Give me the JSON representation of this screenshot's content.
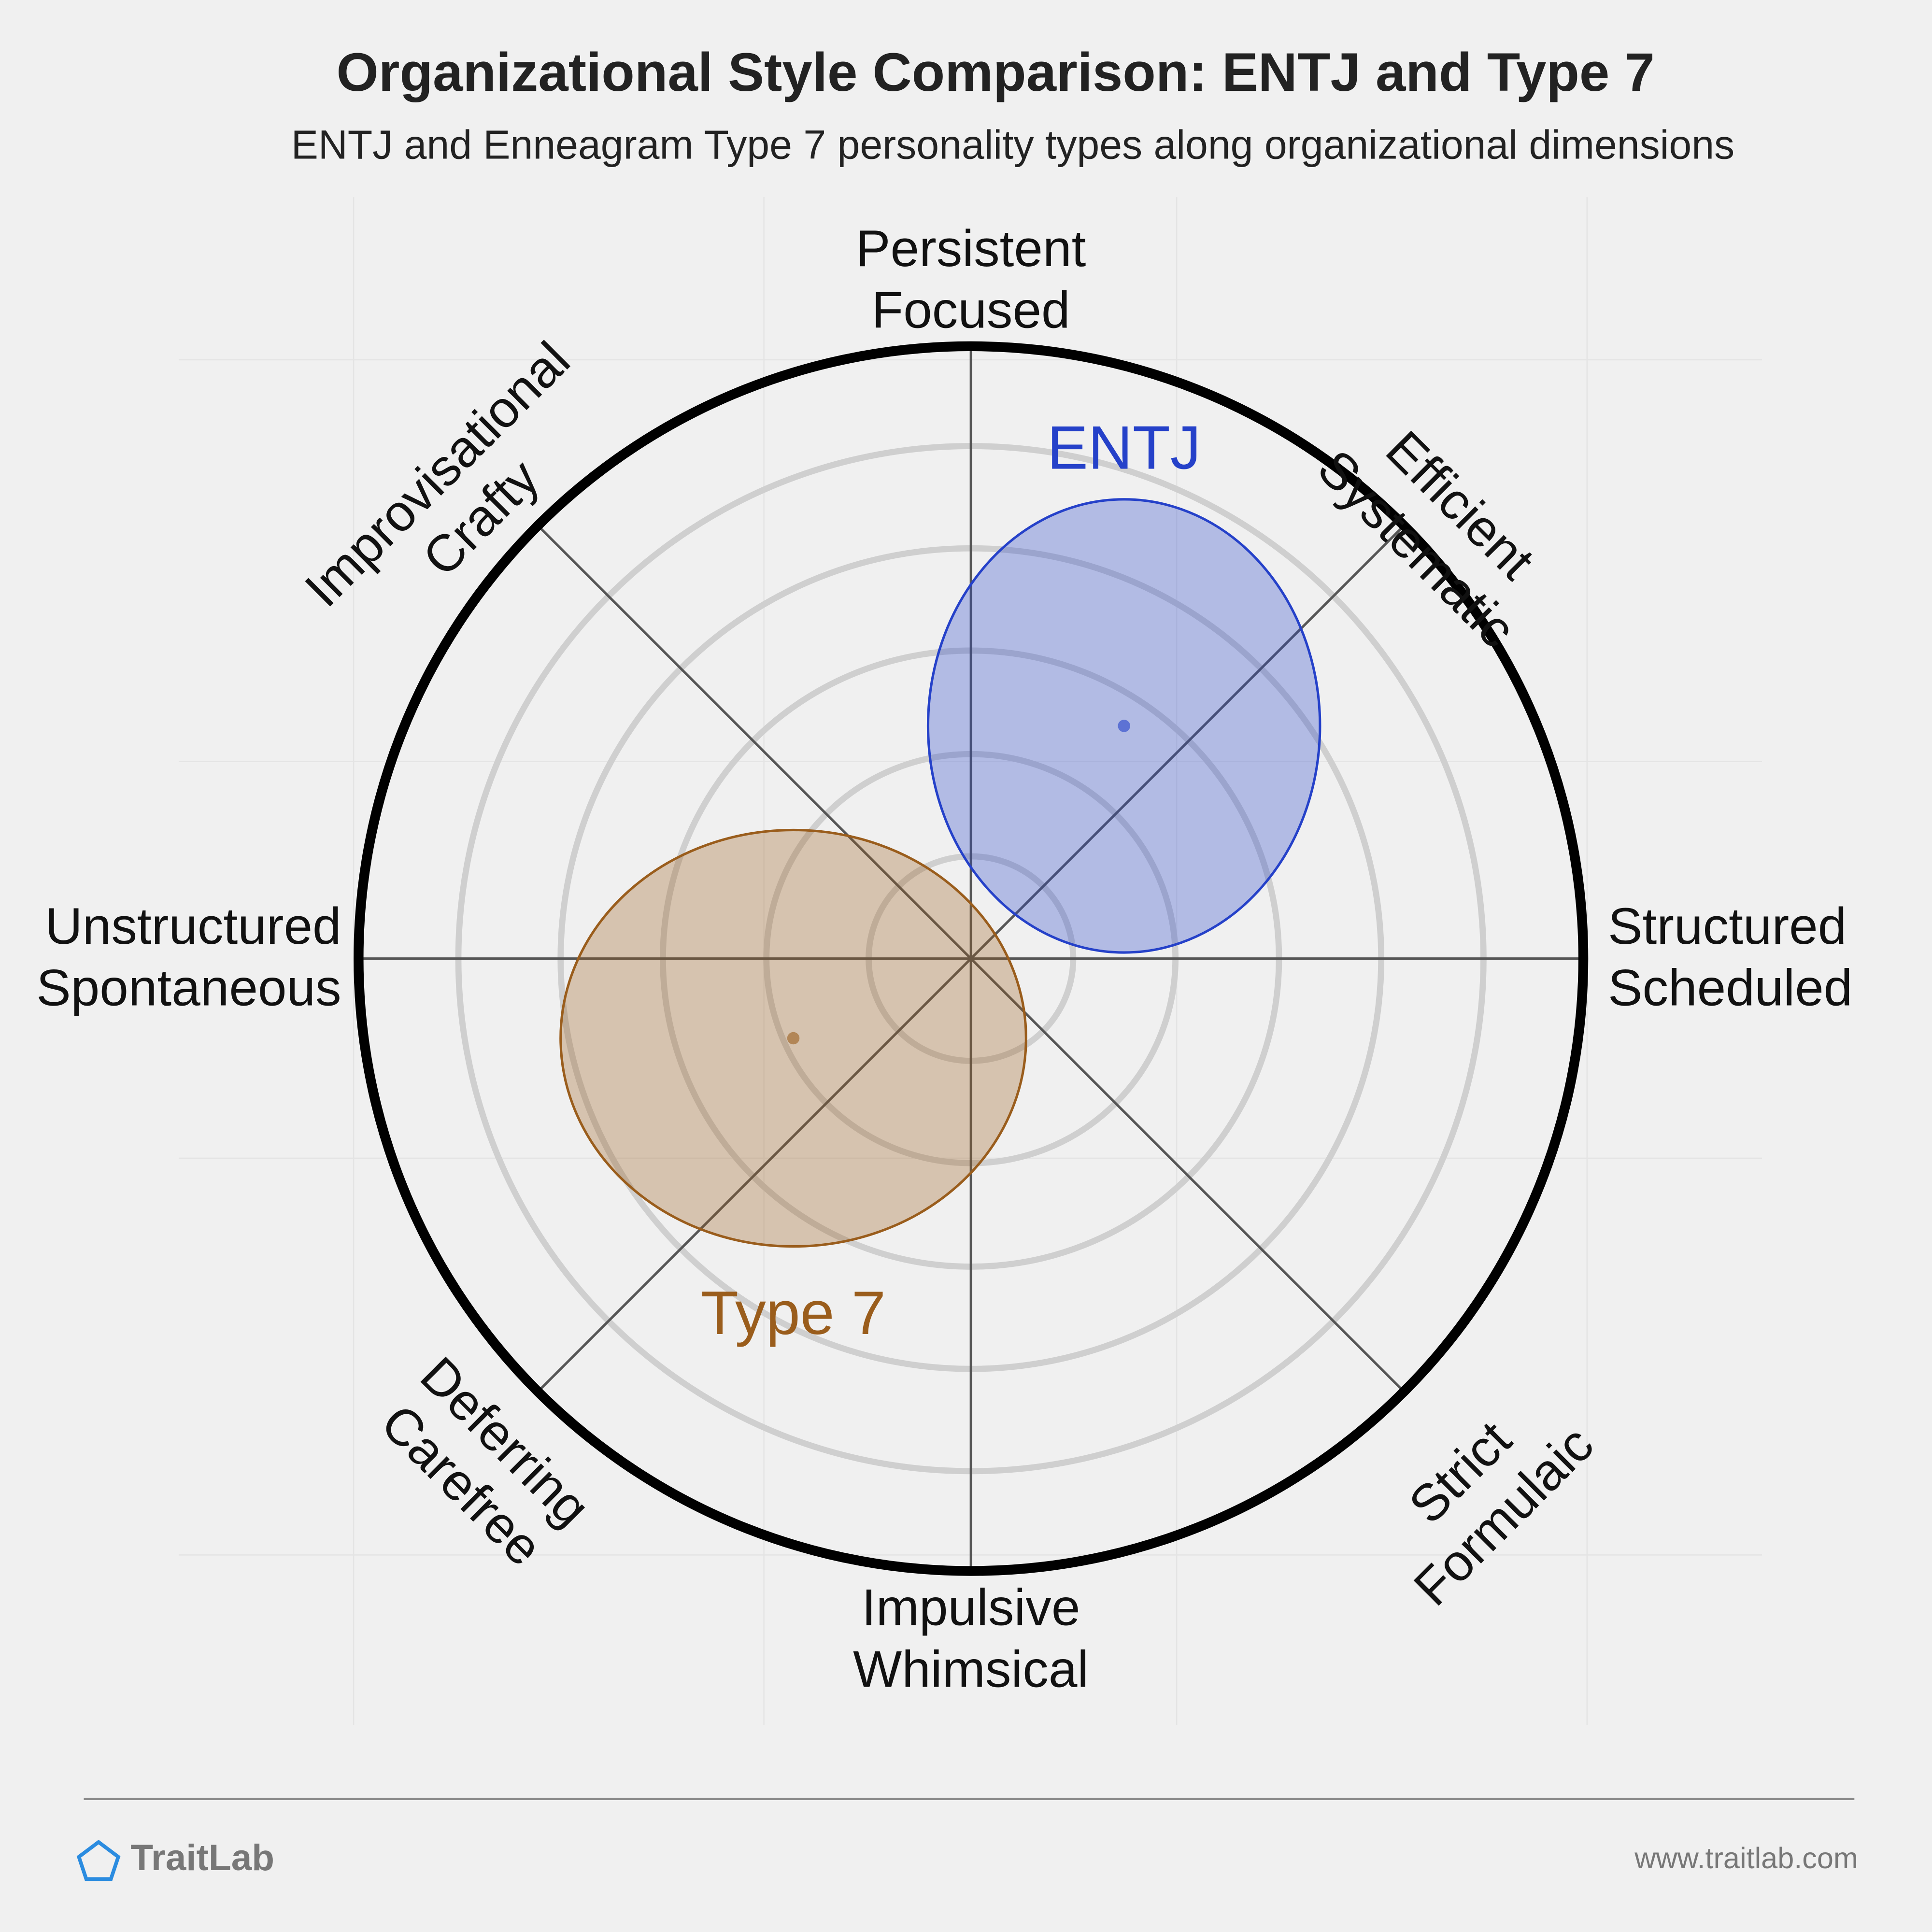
{
  "chart_data": {
    "type": "scatter",
    "title": "Organizational Style Comparison: ENTJ and Type 7",
    "subtitle": "ENTJ and Enneagram Type 7 personality types along organizational dimensions",
    "xlim": [
      -1,
      1
    ],
    "ylim": [
      -1,
      1
    ],
    "axis_labels": [
      [
        "Structured",
        "Scheduled"
      ],
      [
        "Efficient",
        "Systematic"
      ],
      [
        "Persistent",
        "Focused"
      ],
      [
        "Improvisational",
        "Crafty"
      ],
      [
        "Unstructured",
        "Spontaneous"
      ],
      [
        "Deferring",
        "Carefree"
      ],
      [
        "Impulsive",
        "Whimsical"
      ],
      [
        "Strict",
        "Formulaic"
      ]
    ],
    "series": [
      {
        "name": "ENTJ",
        "color": "#2541c9",
        "x": 0.25,
        "y": 0.38,
        "rx": 0.32,
        "ry": 0.37
      },
      {
        "name": "Type 7",
        "color": "#9a5d1c",
        "x": -0.29,
        "y": -0.13,
        "rx": 0.38,
        "ry": 0.34
      }
    ]
  },
  "footer": {
    "brand": "TraitLab",
    "url": "www.traitlab.com"
  }
}
